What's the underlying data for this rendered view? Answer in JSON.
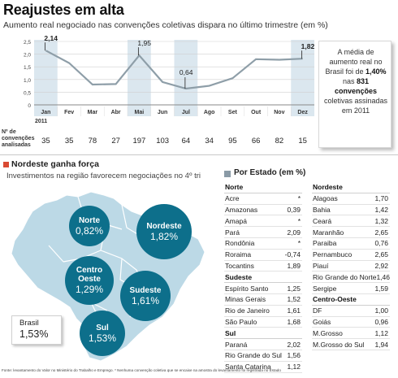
{
  "header": {
    "title": "Reajustes em alta",
    "subtitle": "Aumento real negociado nas convenções coletivas dispara no último trimestre (em %)"
  },
  "chart_data": [
    {
      "type": "line",
      "title": "",
      "x": [
        "Jan",
        "Fev",
        "Mar",
        "Abr",
        "Mai",
        "Jun",
        "Jul",
        "Ago",
        "Set",
        "Out",
        "Nov",
        "Dez"
      ],
      "year_label": "2011",
      "ylim": [
        0,
        2.5
      ],
      "yticks": [
        "2,5",
        "2,0",
        "1,5",
        "1,0",
        "0,5",
        "0"
      ],
      "series": [
        {
          "values": [
            2.14,
            1.65,
            0.8,
            0.82,
            1.95,
            0.9,
            0.64,
            0.75,
            1.05,
            1.8,
            1.78,
            1.82
          ]
        }
      ],
      "annotations": [
        {
          "index": 0,
          "text": "2,14"
        },
        {
          "index": 4,
          "text": "1,95"
        },
        {
          "index": 6,
          "text": "0,64"
        },
        {
          "index": 11,
          "text": "1,82"
        }
      ],
      "shaded_months": [
        0,
        4,
        6,
        11
      ],
      "counts_label": [
        "Nº de",
        "convenções",
        "analisadas"
      ],
      "counts": [
        35,
        35,
        78,
        27,
        197,
        103,
        64,
        34,
        95,
        66,
        82,
        15
      ],
      "colors": {
        "line": "#8e9ea8",
        "shade": "#dbe7ef",
        "grid": "#d0d0d0"
      }
    },
    {
      "type": "table",
      "title": "Por Estado (em %)",
      "groups": [
        {
          "name": "Norte",
          "rows": [
            [
              "Acre",
              "*"
            ],
            [
              "Amazonas",
              "0,39"
            ],
            [
              "Amapá",
              "*"
            ],
            [
              "Pará",
              "2,09"
            ],
            [
              "Rondônia",
              "*"
            ],
            [
              "Roraima",
              "-0,74"
            ],
            [
              "Tocantins",
              "1,89"
            ]
          ]
        },
        {
          "name": "Sudeste",
          "rows": [
            [
              "Espírito Santo",
              "1,25"
            ],
            [
              "Minas Gerais",
              "1,52"
            ],
            [
              "Rio de Janeiro",
              "1,61"
            ],
            [
              "São Paulo",
              "1,68"
            ]
          ]
        },
        {
          "name": "Sul",
          "rows": [
            [
              "Paraná",
              "2,02"
            ],
            [
              "Rio Grande do Sul",
              "1,56"
            ],
            [
              "Santa Catarina",
              "1,12"
            ]
          ]
        },
        {
          "name": "Nordeste",
          "rows": [
            [
              "Alagoas",
              "1,70"
            ],
            [
              "Bahia",
              "1,42"
            ],
            [
              "Ceará",
              "1,32"
            ],
            [
              "Maranhão",
              "2,65"
            ],
            [
              "Paraiba",
              "0,76"
            ],
            [
              "Pernambuco",
              "2,65"
            ],
            [
              "Piauí",
              "2,92"
            ],
            [
              "Rio Grande do Norte",
              "1,46"
            ],
            [
              "Sergipe",
              "1,59"
            ]
          ]
        },
        {
          "name": "Centro-Oeste",
          "rows": [
            [
              "DF",
              "1,00"
            ],
            [
              "Goiás",
              "0,96"
            ],
            [
              "M.Grosso",
              "1,12"
            ],
            [
              "M.Grosso do Sul",
              "1,94"
            ]
          ]
        }
      ]
    }
  ],
  "note": {
    "before": "A média de aumento real no Brasil foi de ",
    "value": "1,40%",
    "middle": " nas ",
    "count": "831 convenções",
    "after": " coletivas assinadas em 2011"
  },
  "section": {
    "title": "Nordeste ganha força",
    "subtitle": "Investimentos na região favorecem negociações no 4º tri",
    "color": "#d94a33"
  },
  "map": {
    "regions": [
      {
        "name": "Norte",
        "value": "0,82%"
      },
      {
        "name": "Nordeste",
        "value": "1,82%"
      },
      {
        "name": "Centro Oeste",
        "value": "1,29%"
      },
      {
        "name": "Sudeste",
        "value": "1,61%"
      },
      {
        "name": "Sul",
        "value": "1,53%"
      }
    ],
    "brasil_label": "Brasil",
    "brasil_value": "1,53%",
    "colors": {
      "land": "#bcd9e6",
      "bubble": "#0d6f8b"
    }
  },
  "table_header": {
    "title": "Por Estado (em %)",
    "icon": "square-icon",
    "color": "#8a9aa6"
  },
  "footer": "Fonte: levantamento do Valor no Ministério do Trabalho e Emprego. * Nenhuma convenção coletiva que se encaixe na amostra do levantamento foi registrada no Estado"
}
